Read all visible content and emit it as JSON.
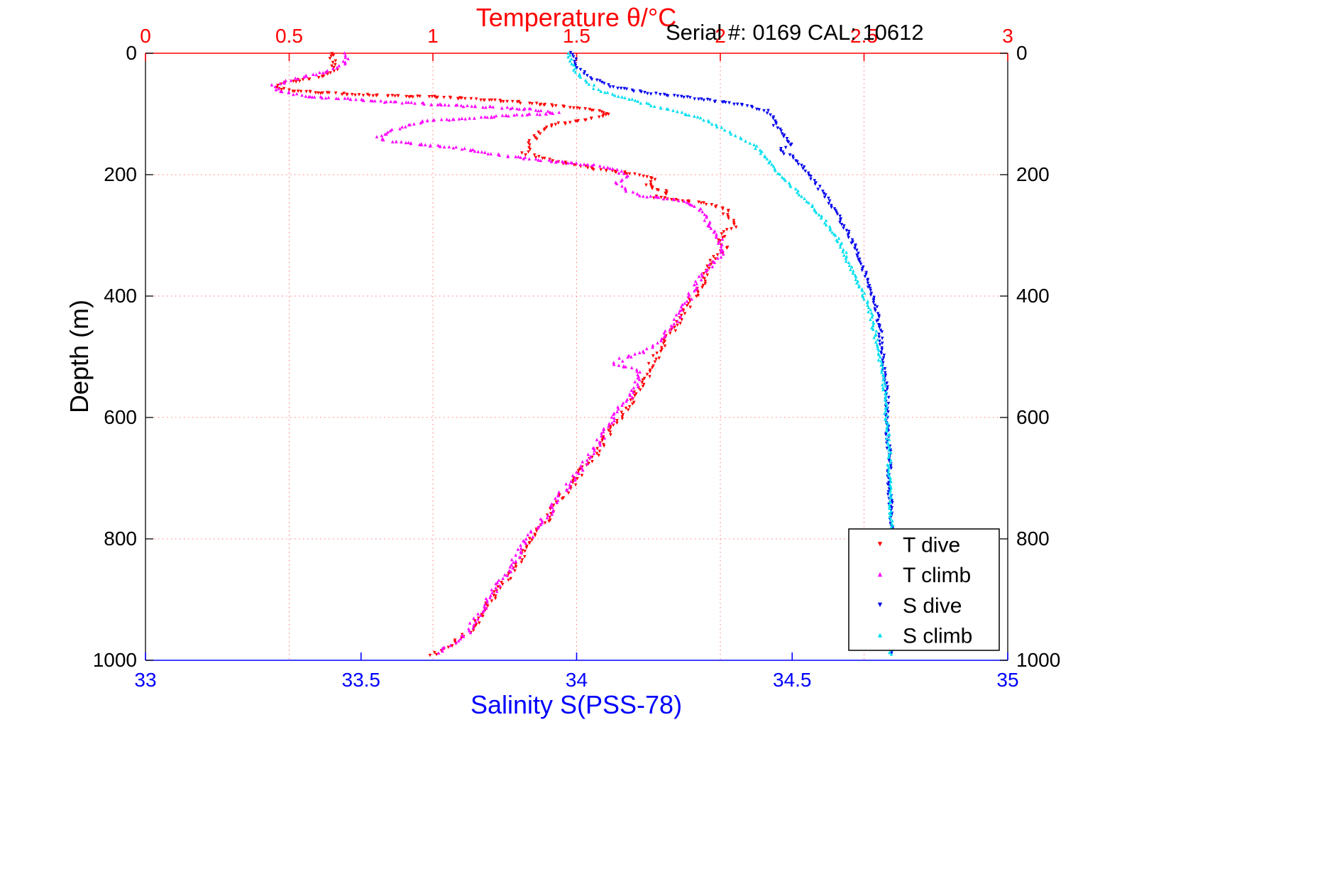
{
  "chart_data": {
    "type": "scatter",
    "title": "Temperature θ/°C",
    "subtitle": "Serial #: 0169 CAL: 10612",
    "xlabel": "Salinity S(PSS-78)",
    "ylabel": "Depth (m)",
    "axes": {
      "temperature": {
        "min": 0,
        "max": 3,
        "ticks": [
          0,
          0.5,
          1,
          1.5,
          2,
          2.5,
          3
        ],
        "tick_labels": [
          "0",
          "0.5",
          "1",
          "1.5",
          "2",
          "2.5",
          "3"
        ],
        "position": "top",
        "color": "#ff0000"
      },
      "salinity": {
        "min": 33,
        "max": 35,
        "ticks": [
          33,
          33.5,
          34,
          34.5,
          35
        ],
        "tick_labels": [
          "33",
          "33.5",
          "34",
          "34.5",
          "35"
        ],
        "position": "bottom",
        "color": "#0000ff"
      },
      "depth": {
        "min": 0,
        "max": 1000,
        "ticks": [
          0,
          200,
          400,
          600,
          800,
          1000
        ],
        "tick_labels": [
          "0",
          "200",
          "400",
          "600",
          "800",
          "1000"
        ],
        "inverted": true,
        "color": "#000000"
      }
    },
    "grid": {
      "style": "dotted",
      "color": "#ff6666",
      "vertical_at_temperature": [
        0.5,
        1,
        1.5,
        2,
        2.5
      ],
      "horizontal_at_depth": [
        200,
        400,
        600,
        800
      ]
    },
    "legend": {
      "position": "bottom-right",
      "background": "#ffffff",
      "border_color": "#000000"
    },
    "series": [
      {
        "name": "T dive",
        "x_axis": "temperature",
        "color": "#ff0000",
        "marker": "triangle-down",
        "points_depth_value": [
          [
            0,
            0.64
          ],
          [
            15,
            0.66
          ],
          [
            30,
            0.66
          ],
          [
            42,
            0.58
          ],
          [
            50,
            0.47
          ],
          [
            57,
            0.45
          ],
          [
            63,
            0.52
          ],
          [
            68,
            0.72
          ],
          [
            73,
            1.05
          ],
          [
            80,
            1.28
          ],
          [
            90,
            1.5
          ],
          [
            100,
            1.62
          ],
          [
            108,
            1.55
          ],
          [
            118,
            1.42
          ],
          [
            130,
            1.37
          ],
          [
            148,
            1.34
          ],
          [
            165,
            1.32
          ],
          [
            180,
            1.44
          ],
          [
            192,
            1.58
          ],
          [
            200,
            1.72
          ],
          [
            208,
            1.78
          ],
          [
            218,
            1.74
          ],
          [
            228,
            1.82
          ],
          [
            238,
            1.78
          ],
          [
            248,
            1.95
          ],
          [
            258,
            2.02
          ],
          [
            270,
            2.02
          ],
          [
            283,
            2.06
          ],
          [
            295,
            2.02
          ],
          [
            310,
            1.99
          ],
          [
            322,
            2.02
          ],
          [
            338,
            1.97
          ],
          [
            360,
            1.95
          ],
          [
            385,
            1.93
          ],
          [
            415,
            1.89
          ],
          [
            445,
            1.85
          ],
          [
            475,
            1.81
          ],
          [
            505,
            1.77
          ],
          [
            535,
            1.74
          ],
          [
            565,
            1.7
          ],
          [
            595,
            1.66
          ],
          [
            625,
            1.61
          ],
          [
            655,
            1.58
          ],
          [
            685,
            1.52
          ],
          [
            715,
            1.48
          ],
          [
            745,
            1.42
          ],
          [
            775,
            1.39
          ],
          [
            805,
            1.33
          ],
          [
            835,
            1.3
          ],
          [
            865,
            1.26
          ],
          [
            895,
            1.21
          ],
          [
            925,
            1.17
          ],
          [
            950,
            1.13
          ],
          [
            970,
            1.08
          ],
          [
            985,
            1.02
          ],
          [
            992,
            0.99
          ]
        ]
      },
      {
        "name": "T climb",
        "x_axis": "temperature",
        "color": "#ff00ff",
        "marker": "triangle-up",
        "points_depth_value": [
          [
            0,
            0.7
          ],
          [
            15,
            0.7
          ],
          [
            30,
            0.63
          ],
          [
            42,
            0.52
          ],
          [
            50,
            0.46
          ],
          [
            56,
            0.44
          ],
          [
            62,
            0.47
          ],
          [
            70,
            0.55
          ],
          [
            78,
            0.78
          ],
          [
            85,
            1.05
          ],
          [
            92,
            1.35
          ],
          [
            98,
            1.43
          ],
          [
            105,
            1.18
          ],
          [
            112,
            0.97
          ],
          [
            120,
            0.9
          ],
          [
            128,
            0.86
          ],
          [
            138,
            0.81
          ],
          [
            145,
            0.85
          ],
          [
            152,
            1.0
          ],
          [
            158,
            1.12
          ],
          [
            166,
            1.22
          ],
          [
            172,
            1.3
          ],
          [
            178,
            1.42
          ],
          [
            185,
            1.58
          ],
          [
            193,
            1.65
          ],
          [
            202,
            1.68
          ],
          [
            212,
            1.64
          ],
          [
            222,
            1.66
          ],
          [
            232,
            1.7
          ],
          [
            242,
            1.85
          ],
          [
            252,
            1.92
          ],
          [
            265,
            1.94
          ],
          [
            280,
            1.96
          ],
          [
            295,
            1.98
          ],
          [
            310,
            2.0
          ],
          [
            325,
            2.01
          ],
          [
            342,
            1.98
          ],
          [
            362,
            1.94
          ],
          [
            385,
            1.91
          ],
          [
            415,
            1.88
          ],
          [
            445,
            1.84
          ],
          [
            470,
            1.8
          ],
          [
            490,
            1.74
          ],
          [
            503,
            1.66
          ],
          [
            512,
            1.63
          ],
          [
            520,
            1.7
          ],
          [
            535,
            1.72
          ],
          [
            558,
            1.7
          ],
          [
            580,
            1.66
          ],
          [
            605,
            1.62
          ],
          [
            630,
            1.59
          ],
          [
            655,
            1.56
          ],
          [
            680,
            1.52
          ],
          [
            705,
            1.48
          ],
          [
            730,
            1.44
          ],
          [
            755,
            1.41
          ],
          [
            780,
            1.36
          ],
          [
            805,
            1.32
          ],
          [
            830,
            1.29
          ],
          [
            855,
            1.26
          ],
          [
            880,
            1.22
          ],
          [
            905,
            1.19
          ],
          [
            930,
            1.15
          ],
          [
            955,
            1.12
          ],
          [
            975,
            1.06
          ],
          [
            988,
            1.02
          ]
        ]
      },
      {
        "name": "S dive",
        "x_axis": "salinity",
        "color": "#0000ee",
        "marker": "triangle-down",
        "points_depth_value": [
          [
            0,
            33.99
          ],
          [
            20,
            34.0
          ],
          [
            40,
            34.03
          ],
          [
            55,
            34.08
          ],
          [
            65,
            34.16
          ],
          [
            75,
            34.28
          ],
          [
            85,
            34.38
          ],
          [
            95,
            34.44
          ],
          [
            105,
            34.46
          ],
          [
            120,
            34.46
          ],
          [
            135,
            34.48
          ],
          [
            150,
            34.5
          ],
          [
            160,
            34.47
          ],
          [
            170,
            34.5
          ],
          [
            185,
            34.52
          ],
          [
            200,
            34.54
          ],
          [
            220,
            34.56
          ],
          [
            240,
            34.58
          ],
          [
            260,
            34.6
          ],
          [
            285,
            34.62
          ],
          [
            310,
            34.64
          ],
          [
            335,
            34.655
          ],
          [
            365,
            34.67
          ],
          [
            395,
            34.685
          ],
          [
            425,
            34.695
          ],
          [
            460,
            34.705
          ],
          [
            495,
            34.71
          ],
          [
            530,
            34.715
          ],
          [
            570,
            34.72
          ],
          [
            615,
            34.72
          ],
          [
            660,
            34.725
          ],
          [
            710,
            34.725
          ],
          [
            760,
            34.73
          ],
          [
            810,
            34.73
          ],
          [
            870,
            34.73
          ],
          [
            930,
            34.73
          ],
          [
            990,
            34.73
          ]
        ]
      },
      {
        "name": "S climb",
        "x_axis": "salinity",
        "color": "#00dff0",
        "marker": "triangle-up",
        "points_depth_value": [
          [
            0,
            33.98
          ],
          [
            20,
            33.99
          ],
          [
            40,
            34.01
          ],
          [
            60,
            34.05
          ],
          [
            75,
            34.12
          ],
          [
            90,
            34.2
          ],
          [
            105,
            34.28
          ],
          [
            120,
            34.33
          ],
          [
            135,
            34.37
          ],
          [
            150,
            34.41
          ],
          [
            165,
            34.43
          ],
          [
            180,
            34.45
          ],
          [
            200,
            34.47
          ],
          [
            220,
            34.5
          ],
          [
            240,
            34.53
          ],
          [
            262,
            34.56
          ],
          [
            285,
            34.585
          ],
          [
            310,
            34.61
          ],
          [
            335,
            34.625
          ],
          [
            365,
            34.645
          ],
          [
            395,
            34.665
          ],
          [
            425,
            34.68
          ],
          [
            455,
            34.69
          ],
          [
            490,
            34.7
          ],
          [
            525,
            34.71
          ],
          [
            565,
            34.715
          ],
          [
            610,
            34.72
          ],
          [
            660,
            34.725
          ],
          [
            710,
            34.725
          ],
          [
            760,
            34.73
          ],
          [
            815,
            34.73
          ],
          [
            875,
            34.73
          ],
          [
            935,
            34.73
          ],
          [
            990,
            34.73
          ]
        ]
      }
    ]
  }
}
